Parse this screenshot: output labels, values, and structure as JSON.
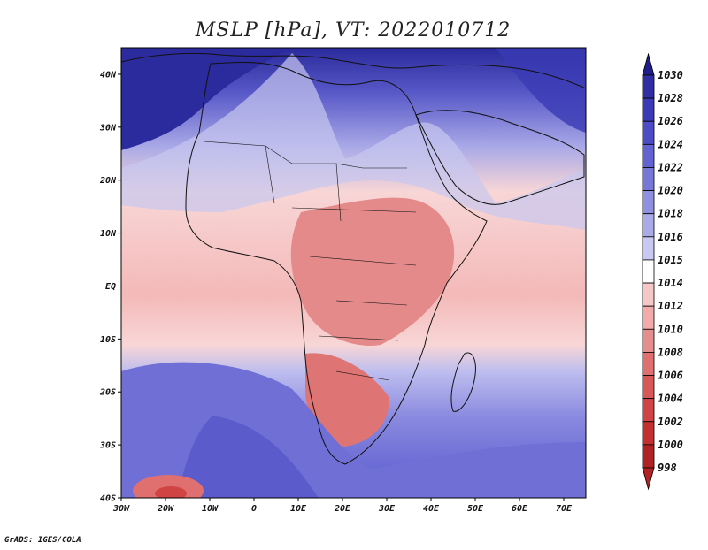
{
  "title": "MSLP [hPa], VT: 2022010712",
  "credit": "GrADS: IGES/COLA",
  "map": {
    "lat_labels": [
      "40N",
      "30N",
      "20N",
      "10N",
      "EQ",
      "10S",
      "20S",
      "30S",
      "40S"
    ],
    "lon_labels": [
      "30W",
      "20W",
      "10W",
      "0",
      "10E",
      "20E",
      "30E",
      "40E",
      "50E",
      "60E",
      "70E"
    ],
    "lat_range": [
      -40,
      45
    ],
    "lon_range": [
      -30,
      75
    ]
  },
  "colorbar": {
    "unit": "hPa",
    "levels": [
      "1030",
      "1028",
      "1026",
      "1024",
      "1022",
      "1020",
      "1018",
      "1016",
      "1015",
      "1014",
      "1012",
      "1010",
      "1008",
      "1006",
      "1004",
      "1002",
      "1000",
      "998"
    ],
    "colors": [
      "#1e1d8a",
      "#2f2fa3",
      "#3b3bb8",
      "#4c4cc6",
      "#6262d2",
      "#7777d9",
      "#9090e0",
      "#aaaae8",
      "#c8c8f2",
      "#ffffff",
      "#f7c6c6",
      "#f2aaaa",
      "#e68d8d",
      "#e07070",
      "#d85858",
      "#d04444",
      "#c43030",
      "#b22222"
    ]
  }
}
